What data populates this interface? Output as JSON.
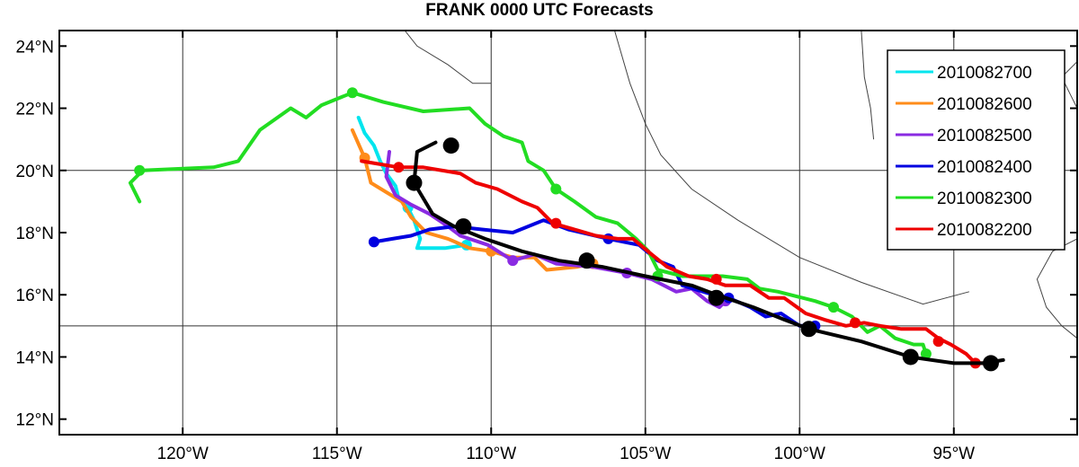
{
  "title": "FRANK 0000 UTC Forecasts",
  "chart_data": {
    "type": "line",
    "title": "FRANK 0000 UTC Forecasts",
    "xlim": [
      -124,
      -91
    ],
    "ylim": [
      11.5,
      24.5
    ],
    "x_ticks": [
      {
        "value": -120,
        "label": "120°W"
      },
      {
        "value": -115,
        "label": "115°W"
      },
      {
        "value": -110,
        "label": "110°W"
      },
      {
        "value": -105,
        "label": "105°W"
      },
      {
        "value": -100,
        "label": "100°W"
      },
      {
        "value": -95,
        "label": "95°W"
      }
    ],
    "y_ticks": [
      {
        "value": 12,
        "label": "12°N"
      },
      {
        "value": 14,
        "label": "14°N"
      },
      {
        "value": 16,
        "label": "16°N"
      },
      {
        "value": 18,
        "label": "18°N"
      },
      {
        "value": 20,
        "label": "20°N"
      },
      {
        "value": 22,
        "label": "22°N"
      },
      {
        "value": 24,
        "label": "24°N"
      }
    ],
    "grid_lons": [
      -120,
      -115,
      -110,
      -105,
      -100,
      -95
    ],
    "grid_lats": [
      15,
      20
    ],
    "legend_position": "top-right",
    "coastline": [
      [
        [
          -112.8,
          24.5
        ],
        [
          -112.4,
          24.0
        ],
        [
          -111.4,
          23.4
        ],
        [
          -110.6,
          22.8
        ],
        [
          -110.0,
          22.8
        ]
      ],
      [
        [
          -106.0,
          24.5
        ],
        [
          -105.5,
          22.8
        ],
        [
          -105.0,
          21.5
        ],
        [
          -104.5,
          20.5
        ],
        [
          -103.5,
          19.4
        ],
        [
          -102.0,
          18.4
        ],
        [
          -100.0,
          17.2
        ],
        [
          -98.0,
          16.4
        ],
        [
          -96.0,
          15.7
        ],
        [
          -94.5,
          16.1
        ]
      ],
      [
        [
          -98.0,
          24.5
        ],
        [
          -97.9,
          23.0
        ],
        [
          -97.7,
          22.0
        ],
        [
          -97.6,
          21.0
        ]
      ],
      [
        [
          -91.0,
          23.5
        ],
        [
          -91.5,
          23.0
        ],
        [
          -91.2,
          22.4
        ],
        [
          -91.0,
          22.0
        ]
      ],
      [
        [
          -91.0,
          17.8
        ],
        [
          -91.8,
          17.4
        ],
        [
          -92.3,
          16.5
        ],
        [
          -92.0,
          15.6
        ],
        [
          -91.5,
          15.0
        ],
        [
          -91.0,
          14.6
        ]
      ]
    ],
    "series": [
      {
        "name": "2010082700",
        "color": "#00e5ee",
        "points": [
          [
            -114.3,
            21.7
          ],
          [
            -114.1,
            21.2
          ],
          [
            -113.8,
            20.8
          ],
          [
            -113.6,
            20.3
          ],
          [
            -113.4,
            19.9
          ],
          [
            -113.1,
            19.5
          ],
          [
            -113.0,
            19.1
          ],
          [
            -112.7,
            18.8
          ],
          [
            -112.5,
            18.4
          ],
          [
            -112.3,
            17.8
          ],
          [
            -112.4,
            17.5
          ],
          [
            -111.5,
            17.5
          ],
          [
            -110.8,
            17.6
          ]
        ],
        "dots": [
          [
            -112.7,
            18.8
          ],
          [
            -110.8,
            17.6
          ]
        ]
      },
      {
        "name": "2010082600",
        "color": "#ff8c1a",
        "points": [
          [
            -114.5,
            21.3
          ],
          [
            -114.1,
            20.4
          ],
          [
            -113.9,
            19.6
          ],
          [
            -113.4,
            19.3
          ],
          [
            -112.9,
            19.0
          ],
          [
            -112.6,
            18.5
          ],
          [
            -112.1,
            18.0
          ],
          [
            -111.4,
            17.8
          ],
          [
            -110.7,
            17.5
          ],
          [
            -110.0,
            17.4
          ],
          [
            -109.3,
            17.2
          ],
          [
            -108.6,
            17.2
          ],
          [
            -108.2,
            16.8
          ],
          [
            -107.2,
            16.9
          ],
          [
            -106.7,
            17.0
          ]
        ],
        "dots": [
          [
            -114.1,
            20.4
          ],
          [
            -110.0,
            17.4
          ],
          [
            -106.7,
            17.0
          ]
        ]
      },
      {
        "name": "2010082500",
        "color": "#8a2be2",
        "points": [
          [
            -113.3,
            20.6
          ],
          [
            -113.4,
            19.8
          ],
          [
            -113.1,
            19.2
          ],
          [
            -112.6,
            18.9
          ],
          [
            -112.0,
            18.6
          ],
          [
            -111.4,
            18.2
          ],
          [
            -111.0,
            17.9
          ],
          [
            -110.1,
            17.6
          ],
          [
            -109.3,
            17.1
          ],
          [
            -108.6,
            17.3
          ],
          [
            -107.9,
            17.0
          ],
          [
            -106.7,
            16.9
          ],
          [
            -105.6,
            16.7
          ],
          [
            -104.8,
            16.5
          ],
          [
            -104.0,
            16.1
          ],
          [
            -103.5,
            16.2
          ],
          [
            -103.0,
            15.8
          ],
          [
            -102.6,
            15.6
          ],
          [
            -102.4,
            15.8
          ]
        ],
        "dots": [
          [
            -109.3,
            17.1
          ],
          [
            -105.6,
            16.7
          ],
          [
            -102.4,
            15.8
          ]
        ]
      },
      {
        "name": "2010082400",
        "color": "#0000e0",
        "points": [
          [
            -113.8,
            17.7
          ],
          [
            -113.2,
            17.8
          ],
          [
            -112.6,
            17.9
          ],
          [
            -112.0,
            18.1
          ],
          [
            -111.2,
            18.2
          ],
          [
            -110.3,
            18.1
          ],
          [
            -109.3,
            18.0
          ],
          [
            -108.3,
            18.4
          ],
          [
            -107.5,
            18.1
          ],
          [
            -106.2,
            17.8
          ],
          [
            -105.2,
            17.6
          ],
          [
            -104.6,
            17.1
          ],
          [
            -104.1,
            16.9
          ],
          [
            -103.8,
            16.3
          ],
          [
            -102.8,
            16.0
          ],
          [
            -102.3,
            15.9
          ],
          [
            -101.6,
            15.6
          ],
          [
            -101.1,
            15.3
          ],
          [
            -100.6,
            15.4
          ],
          [
            -100.0,
            15.0
          ],
          [
            -99.5,
            15.0
          ]
        ],
        "dots": [
          [
            -113.8,
            17.7
          ],
          [
            -106.2,
            17.8
          ],
          [
            -102.3,
            15.9
          ],
          [
            -99.5,
            15.0
          ]
        ]
      },
      {
        "name": "2010082300",
        "color": "#22dd22",
        "points": [
          [
            -121.4,
            19.0
          ],
          [
            -121.7,
            19.6
          ],
          [
            -121.3,
            20.0
          ],
          [
            -119.0,
            20.1
          ],
          [
            -118.2,
            20.3
          ],
          [
            -117.5,
            21.3
          ],
          [
            -116.5,
            22.0
          ],
          [
            -116.0,
            21.7
          ],
          [
            -115.5,
            22.1
          ],
          [
            -114.5,
            22.5
          ],
          [
            -113.5,
            22.2
          ],
          [
            -112.2,
            21.9
          ],
          [
            -110.7,
            22.0
          ],
          [
            -110.2,
            21.5
          ],
          [
            -109.6,
            21.1
          ],
          [
            -109.0,
            20.9
          ],
          [
            -108.8,
            20.3
          ],
          [
            -108.3,
            20.0
          ],
          [
            -107.9,
            19.4
          ],
          [
            -107.3,
            19.0
          ],
          [
            -106.6,
            18.5
          ],
          [
            -105.9,
            18.3
          ],
          [
            -105.3,
            17.8
          ],
          [
            -104.9,
            17.4
          ],
          [
            -104.6,
            16.8
          ],
          [
            -103.8,
            16.6
          ],
          [
            -102.5,
            16.6
          ],
          [
            -101.7,
            16.5
          ],
          [
            -101.3,
            16.2
          ],
          [
            -100.7,
            16.1
          ],
          [
            -99.9,
            15.9
          ],
          [
            -99.5,
            15.8
          ],
          [
            -98.9,
            15.6
          ],
          [
            -98.3,
            15.3
          ],
          [
            -97.8,
            14.8
          ],
          [
            -97.4,
            15.0
          ],
          [
            -96.9,
            14.6
          ],
          [
            -96.3,
            14.4
          ],
          [
            -96.0,
            14.4
          ],
          [
            -95.9,
            14.1
          ]
        ],
        "dots": [
          [
            -121.4,
            20.0
          ],
          [
            -114.5,
            22.5
          ],
          [
            -107.9,
            19.4
          ],
          [
            -104.6,
            16.6
          ],
          [
            -98.9,
            15.6
          ],
          [
            -95.9,
            14.1
          ]
        ]
      },
      {
        "name": "2010082200",
        "color": "#ee0000",
        "points": [
          [
            -114.2,
            20.3
          ],
          [
            -113.0,
            20.1
          ],
          [
            -112.2,
            20.1
          ],
          [
            -111.0,
            19.9
          ],
          [
            -110.5,
            19.6
          ],
          [
            -109.8,
            19.4
          ],
          [
            -109.0,
            19.0
          ],
          [
            -108.5,
            18.8
          ],
          [
            -108.0,
            18.3
          ],
          [
            -107.3,
            18.1
          ],
          [
            -106.6,
            17.9
          ],
          [
            -105.9,
            17.8
          ],
          [
            -105.4,
            17.8
          ],
          [
            -104.8,
            17.3
          ],
          [
            -104.3,
            16.9
          ],
          [
            -103.6,
            16.6
          ],
          [
            -103.0,
            16.5
          ],
          [
            -102.4,
            16.3
          ],
          [
            -101.6,
            16.3
          ],
          [
            -101.0,
            15.9
          ],
          [
            -100.5,
            15.9
          ],
          [
            -99.8,
            15.4
          ],
          [
            -99.2,
            15.2
          ],
          [
            -98.5,
            15.0
          ],
          [
            -97.9,
            15.1
          ],
          [
            -97.4,
            15.0
          ],
          [
            -96.7,
            14.9
          ],
          [
            -95.9,
            14.9
          ],
          [
            -95.5,
            14.6
          ],
          [
            -95.1,
            14.4
          ],
          [
            -94.6,
            14.1
          ],
          [
            -94.3,
            13.8
          ],
          [
            -94.0,
            13.8
          ],
          [
            -93.8,
            13.7
          ]
        ],
        "dots": [
          [
            -113.0,
            20.1
          ],
          [
            -107.9,
            18.3
          ],
          [
            -102.7,
            16.5
          ],
          [
            -98.2,
            15.1
          ],
          [
            -95.5,
            14.5
          ],
          [
            -94.3,
            13.8
          ]
        ]
      },
      {
        "name": "",
        "color": "#000000",
        "points": [
          [
            -111.8,
            20.9
          ],
          [
            -112.4,
            20.6
          ],
          [
            -112.5,
            19.6
          ],
          [
            -112.2,
            19.1
          ],
          [
            -111.9,
            18.6
          ],
          [
            -111.2,
            18.2
          ],
          [
            -110.2,
            17.8
          ],
          [
            -109.0,
            17.4
          ],
          [
            -107.8,
            17.1
          ],
          [
            -106.4,
            16.9
          ],
          [
            -105.0,
            16.6
          ],
          [
            -103.5,
            16.3
          ],
          [
            -102.7,
            16.0
          ],
          [
            -101.5,
            15.6
          ],
          [
            -100.5,
            15.2
          ],
          [
            -99.7,
            14.9
          ],
          [
            -98.0,
            14.5
          ],
          [
            -96.4,
            14.0
          ],
          [
            -95.0,
            13.8
          ],
          [
            -94.0,
            13.8
          ],
          [
            -93.4,
            13.9
          ]
        ],
        "dots": [
          [
            -111.3,
            20.8
          ],
          [
            -112.5,
            19.6
          ],
          [
            -110.9,
            18.2
          ],
          [
            -106.9,
            17.1
          ],
          [
            -102.7,
            15.9
          ],
          [
            -99.7,
            14.9
          ],
          [
            -96.4,
            14.0
          ],
          [
            -93.8,
            13.8
          ]
        ]
      }
    ]
  }
}
